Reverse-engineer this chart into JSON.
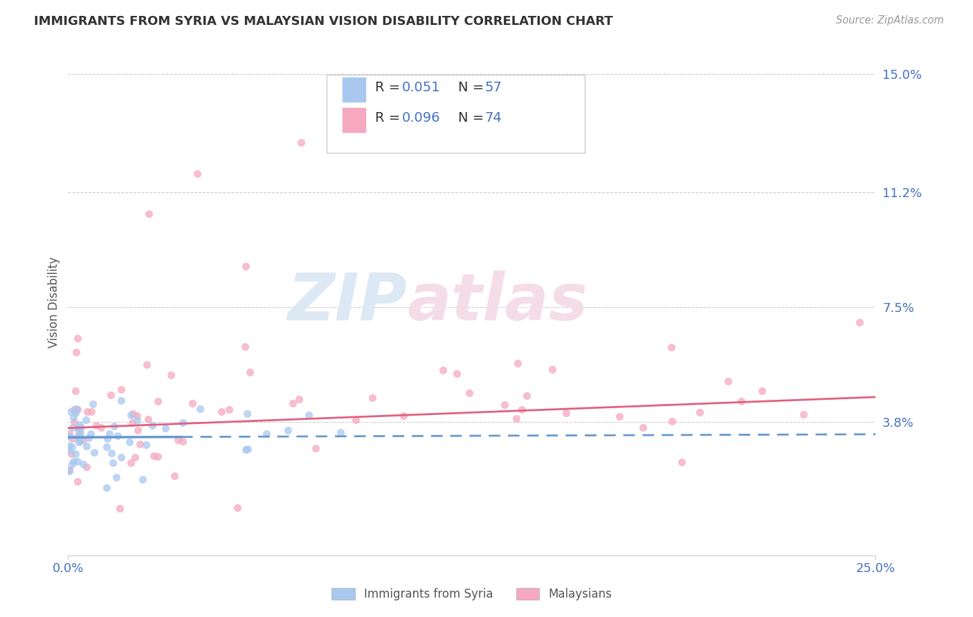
{
  "title": "IMMIGRANTS FROM SYRIA VS MALAYSIAN VISION DISABILITY CORRELATION CHART",
  "source": "Source: ZipAtlas.com",
  "ylabel": "Vision Disability",
  "x_min": 0.0,
  "x_max": 0.25,
  "y_min": -0.005,
  "y_max": 0.158,
  "x_tick_labels": [
    "0.0%",
    "25.0%"
  ],
  "x_tick_vals": [
    0.0,
    0.25
  ],
  "y_tick_labels": [
    "3.8%",
    "7.5%",
    "11.2%",
    "15.0%"
  ],
  "y_tick_vals": [
    0.038,
    0.075,
    0.112,
    0.15
  ],
  "legend_label_1": "Immigrants from Syria",
  "legend_label_2": "Malaysians",
  "color_syria": "#a8c8f0",
  "color_malaysia": "#f5a8c0",
  "color_blue_text": "#4472c4",
  "color_trend_syria": "#6699cc",
  "color_trend_malaysia": "#e06080",
  "grid_color": "#cccccc",
  "background_color": "#ffffff",
  "watermark_color": "#dde8f5",
  "watermark_color2": "#f5dde8"
}
